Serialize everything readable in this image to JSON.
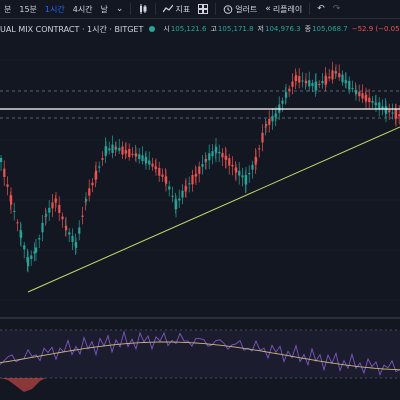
{
  "toolbar": {
    "timeframes": [
      "분",
      "15분",
      "1시간",
      "4시간",
      "날"
    ],
    "active_timeframe": "1시간",
    "chart_type_icon": "candles-icon",
    "indicators_label": "지표",
    "layout_icon": "layout-grid-icon",
    "alert_label": "얼러트",
    "replay_label": "리플레이",
    "undo_icon": "undo-icon",
    "redo_icon": "redo-icon"
  },
  "legend": {
    "title": "UAL MIX CONTRACT · 1시간 · BITGET",
    "open_label": "시",
    "open": "105,121.6",
    "high_label": "고",
    "high": "105,171.8",
    "low_label": "저",
    "low": "104,976.3",
    "close_label": "종",
    "close": "105,068.7",
    "change": "−52.9 (−0.05%)"
  },
  "colors": {
    "background": "#131722",
    "up": "#26a69a",
    "down": "#ef5350",
    "trendline": "#c5d86d",
    "horizontal_line": "#ffffff",
    "rsi": "#7e57c2",
    "ma": "#c9b87a"
  }
}
